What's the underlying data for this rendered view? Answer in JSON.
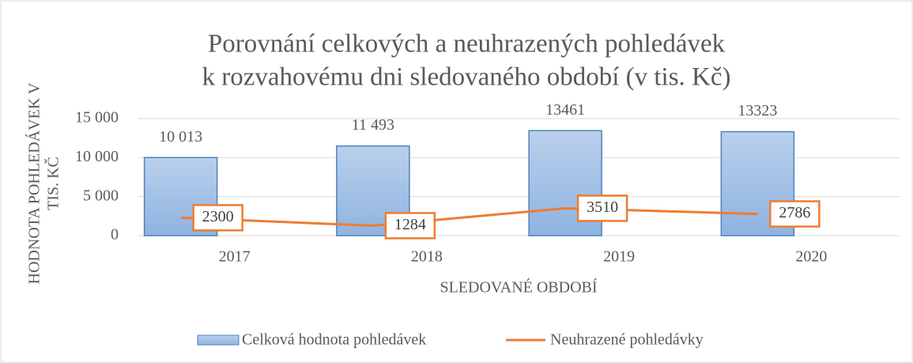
{
  "chart_data": {
    "type": "bar",
    "title": [
      "Porovnání celkových a neuhrazených pohledávek",
      "k rozvahovému dni sledovaného období (v tis. Kč)"
    ],
    "x_label": "SLEDOVANÉ OBDOBÍ",
    "y_label": [
      "HODNOTA POHLEDÁVEK V",
      "TIS. KČ"
    ],
    "categories": [
      "2017",
      "2018",
      "2019",
      "2020"
    ],
    "series": [
      {
        "name": "Celková hodnota pohledávek",
        "type": "bar",
        "color": "#9dbde6",
        "values": [
          10013,
          11493,
          13461,
          13323
        ],
        "value_labels": [
          "10 013",
          "11 493",
          "13461",
          "13323"
        ]
      },
      {
        "name": "Neuhrazené pohledávky",
        "type": "line",
        "color": "#ed7d31",
        "values": [
          2300,
          1284,
          3510,
          2786
        ]
      }
    ],
    "ylim": [
      0,
      15000
    ],
    "yticks": [
      0,
      {
        "value": 5000,
        "label": "5 000"
      },
      {
        "value": 10000,
        "label": "10 000"
      },
      {
        "value": 15000,
        "label": "15 000"
      }
    ],
    "grid": true,
    "legend": "bottom"
  }
}
